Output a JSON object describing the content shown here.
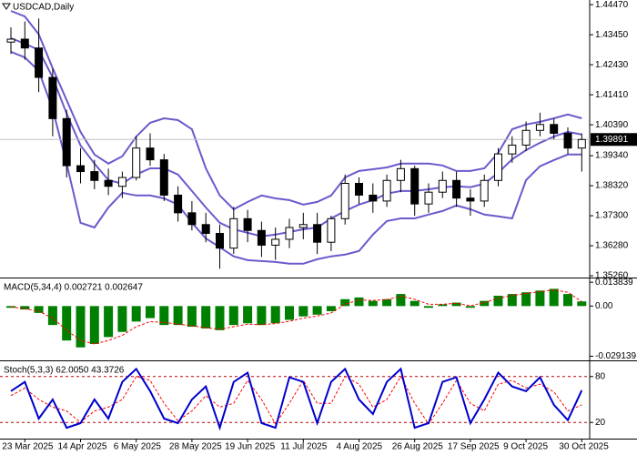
{
  "chart_data": [
    {
      "type": "candlestick",
      "title": "USDCAD,Daily",
      "categories": [
        null,
        "23 Mar 2025",
        null,
        null,
        null,
        "14 Apr 2025",
        null,
        null,
        null,
        "6 May 2025",
        null,
        null,
        null,
        "28 May 2025",
        null,
        null,
        null,
        "19 Jun 2025",
        null,
        null,
        null,
        "11 Jul 2025",
        null,
        null,
        null,
        "4 Aug 2025",
        null,
        null,
        null,
        "26 Aug 2025",
        null,
        null,
        null,
        "17 Sep 2025",
        null,
        null,
        null,
        "9 Oct 2025",
        null,
        null,
        null,
        "30 Oct 2025"
      ],
      "open": [
        1.432,
        1.433,
        1.43,
        1.42,
        1.406,
        1.39,
        1.388,
        1.385,
        1.383,
        1.386,
        1.396,
        1.392,
        1.38,
        1.374,
        1.37,
        1.367,
        1.362,
        1.372,
        1.368,
        1.363,
        1.365,
        1.369,
        1.37,
        1.364,
        1.372,
        1.384,
        1.38,
        1.378,
        1.385,
        1.389,
        1.377,
        1.381,
        1.385,
        1.379,
        1.378,
        1.385,
        1.394,
        1.397,
        1.402,
        1.404,
        1.401,
        1.396
      ],
      "high": [
        1.437,
        1.439,
        1.44,
        1.423,
        1.409,
        1.396,
        1.392,
        1.389,
        1.388,
        1.4,
        1.401,
        1.394,
        1.383,
        1.378,
        1.374,
        1.37,
        1.376,
        1.375,
        1.371,
        1.369,
        1.372,
        1.374,
        1.374,
        1.373,
        1.387,
        1.386,
        1.384,
        1.387,
        1.392,
        1.39,
        1.384,
        1.388,
        1.388,
        1.382,
        1.387,
        1.396,
        1.4,
        1.405,
        1.408,
        1.406,
        1.403,
        1.401
      ],
      "low": [
        1.428,
        1.426,
        1.415,
        1.4,
        1.386,
        1.384,
        1.382,
        1.38,
        1.379,
        1.385,
        1.39,
        1.378,
        1.371,
        1.368,
        1.364,
        1.355,
        1.36,
        1.364,
        1.359,
        1.358,
        1.362,
        1.365,
        1.36,
        1.361,
        1.37,
        1.377,
        1.374,
        1.376,
        1.381,
        1.373,
        1.374,
        1.379,
        1.376,
        1.373,
        1.376,
        1.383,
        1.391,
        1.395,
        1.4,
        1.399,
        1.394,
        1.388
      ],
      "close": [
        1.433,
        1.43,
        1.42,
        1.406,
        1.39,
        1.388,
        1.385,
        1.383,
        1.386,
        1.396,
        1.392,
        1.38,
        1.374,
        1.37,
        1.367,
        1.362,
        1.372,
        1.368,
        1.363,
        1.365,
        1.369,
        1.37,
        1.364,
        1.372,
        1.384,
        1.38,
        1.378,
        1.385,
        1.389,
        1.377,
        1.381,
        1.385,
        1.379,
        1.378,
        1.385,
        1.394,
        1.397,
        1.402,
        1.404,
        1.401,
        1.396,
        1.3989
      ],
      "up_color": "#ffffff",
      "down_color": "#000000",
      "outline_color": "#000000",
      "overlays": [
        {
          "color": "#6a5acd",
          "values": [
            1.4426,
            1.4407,
            1.4346,
            1.4231,
            1.4123,
            1.4015,
            1.3938,
            1.3907,
            1.3932,
            1.3999,
            1.4046,
            1.4061,
            1.4055,
            1.4024,
            1.3891,
            1.3799,
            1.3752,
            1.3777,
            1.3799,
            1.3789,
            1.3783,
            1.3768,
            1.3777,
            1.3799,
            1.386,
            1.3882,
            1.3888,
            1.3894,
            1.3907,
            1.3907,
            1.3907,
            1.3901,
            1.3882,
            1.3882,
            1.3891,
            1.3944,
            1.4024,
            1.404,
            1.4049,
            1.4061,
            1.4074,
            1.4061
          ]
        },
        {
          "color": "#6a5acd",
          "values": [
            1.4333,
            1.4315,
            1.4293,
            1.42,
            1.4077,
            1.3969,
            1.3907,
            1.3851,
            1.3839,
            1.387,
            1.3891,
            1.3891,
            1.387,
            1.3814,
            1.3758,
            1.3706,
            1.3684,
            1.3672,
            1.366,
            1.3666,
            1.3675,
            1.3684,
            1.369,
            1.3721,
            1.3746,
            1.3768,
            1.3783,
            1.3805,
            1.3814,
            1.3814,
            1.382,
            1.3827,
            1.383,
            1.3827,
            1.3839,
            1.3876,
            1.3922,
            1.3953,
            1.3978,
            1.3999,
            1.4015,
            1.4006
          ]
        },
        {
          "color": "#6a5acd",
          "values": [
            1.4287,
            1.4268,
            1.4222,
            1.4092,
            1.3907,
            1.3706,
            1.369,
            1.3758,
            1.3808,
            1.3799,
            1.3799,
            1.3789,
            1.3768,
            1.3706,
            1.3653,
            1.3623,
            1.3592,
            1.3579,
            1.3576,
            1.3573,
            1.3567,
            1.3567,
            1.3582,
            1.3592,
            1.3598,
            1.361,
            1.3666,
            1.3712,
            1.3721,
            1.3721,
            1.3734,
            1.3746,
            1.3765,
            1.3752,
            1.3734,
            1.3728,
            1.3721,
            1.3851,
            1.3898,
            1.3919,
            1.3938,
            1.3938
          ]
        }
      ],
      "current_price": 1.39891,
      "ylim": [
        1.352,
        1.4463
      ],
      "yticks": [
        {
          "value": 1.4447,
          "label": "1.44470"
        },
        {
          "value": 1.4345,
          "label": "1.43450"
        },
        {
          "value": 1.4243,
          "label": "1.42430"
        },
        {
          "value": 1.4141,
          "label": "1.41410"
        },
        {
          "value": 1.4039,
          "label": "1.40390"
        },
        {
          "value": 1.3934,
          "label": "1.39340"
        },
        {
          "value": 1.3832,
          "label": "1.38320"
        },
        {
          "value": 1.373,
          "label": "1.37300"
        },
        {
          "value": 1.3628,
          "label": "1.36280"
        },
        {
          "value": 1.3526,
          "label": "1.35260"
        }
      ]
    },
    {
      "type": "bar",
      "title": "MACD(5,34,4) 0.002721 0.002647",
      "color": "#008000",
      "values": [
        -0.001,
        -0.002,
        -0.004,
        -0.011,
        -0.02,
        -0.024,
        -0.022,
        -0.018,
        -0.015,
        -0.009,
        -0.007,
        -0.011,
        -0.011,
        -0.012,
        -0.013,
        -0.014,
        -0.011,
        -0.01,
        -0.011,
        -0.01,
        -0.008,
        -0.006,
        -0.005,
        -0.003,
        0.004,
        0.005,
        0.003,
        0.004,
        0.007,
        0.003,
        -0.001,
        0.001,
        0.002,
        -0.001,
        0.003,
        0.006,
        0.007,
        0.008,
        0.009,
        0.01,
        0.007,
        0.0027
      ],
      "signal": {
        "color": "#ff0000",
        "values": [
          -0.0005,
          -0.0015,
          -0.003,
          -0.007,
          -0.014,
          -0.02,
          -0.022,
          -0.02,
          -0.017,
          -0.012,
          -0.009,
          -0.0095,
          -0.0105,
          -0.0115,
          -0.0125,
          -0.0135,
          -0.012,
          -0.0105,
          -0.0108,
          -0.0102,
          -0.0088,
          -0.007,
          -0.0058,
          -0.004,
          0.001,
          0.0035,
          0.0033,
          0.0037,
          0.0057,
          0.004,
          0.001,
          0.001,
          0.0016,
          0.0002,
          0.002,
          0.0045,
          0.0062,
          0.0073,
          0.0083,
          0.0094,
          0.008,
          0.0026
        ]
      },
      "ylim": [
        -0.031,
        0.0155
      ],
      "yticks": [
        0.013839,
        {
          "value": 0,
          "label": "0.00"
        },
        -0.029139
      ]
    },
    {
      "type": "line",
      "title": "Stoch(5,3,3) 62.0050 43.3726",
      "series": [
        {
          "color": "#0000cd",
          "values": [
            61,
            73,
            25,
            50,
            13,
            19,
            50,
            25,
            73,
            90,
            61,
            25,
            19,
            50,
            67,
            13,
            73,
            85,
            19,
            13,
            79,
            73,
            19,
            73,
            90,
            50,
            31,
            73,
            90,
            13,
            19,
            73,
            79,
            19,
            50,
            85,
            67,
            61,
            79,
            43,
            23,
            62
          ]
        }
      ],
      "signal": {
        "color": "#ff0000",
        "values": [
          55,
          65,
          50,
          40,
          35,
          20,
          35,
          40,
          50,
          80,
          75,
          45,
          22,
          35,
          55,
          40,
          45,
          75,
          50,
          18,
          45,
          75,
          45,
          45,
          80,
          70,
          40,
          50,
          80,
          45,
          18,
          45,
          75,
          45,
          35,
          70,
          75,
          65,
          70,
          60,
          35,
          43
        ]
      },
      "level_color": "#c00000",
      "ylim": [
        0,
        100
      ],
      "yticks": [
        80,
        20
      ]
    }
  ]
}
